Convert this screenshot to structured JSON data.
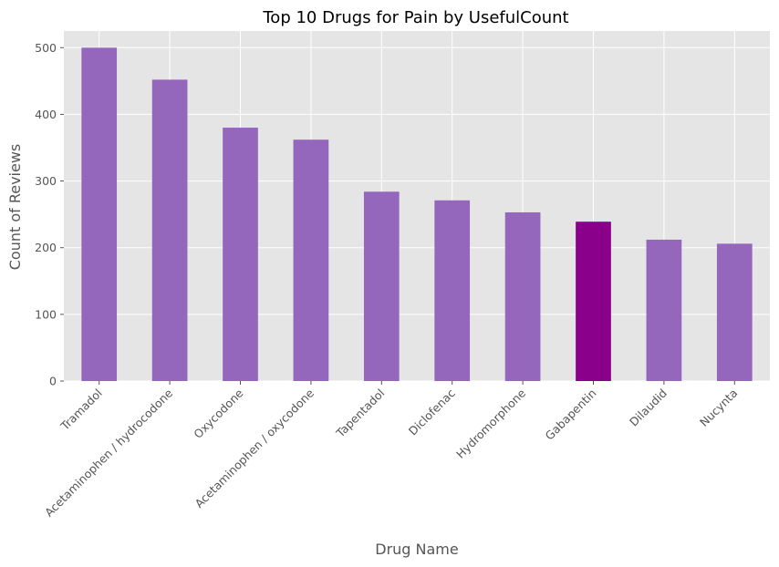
{
  "chart_data": {
    "type": "bar",
    "title": "Top 10 Drugs for Pain by UsefulCount",
    "xlabel": "Drug Name",
    "ylabel": "Count of Reviews",
    "categories": [
      "Tramadol",
      "Acetaminophen / hydrocodone",
      "Oxycodone",
      "Acetaminophen / oxycodone",
      "Tapentadol",
      "Diclofenac",
      "Hydromorphone",
      "Gabapentin",
      "Dilaudid",
      "Nucynta"
    ],
    "values": [
      500,
      452,
      380,
      362,
      284,
      271,
      253,
      239,
      212,
      206
    ],
    "ylim": [
      0,
      525
    ],
    "yticks": [
      0,
      100,
      200,
      300,
      400,
      500
    ],
    "grid": true,
    "colors": {
      "bar": "#9467bd",
      "highlight": "#8b008b",
      "background": "#e5e5e5"
    },
    "highlight_category": "Gabapentin"
  }
}
